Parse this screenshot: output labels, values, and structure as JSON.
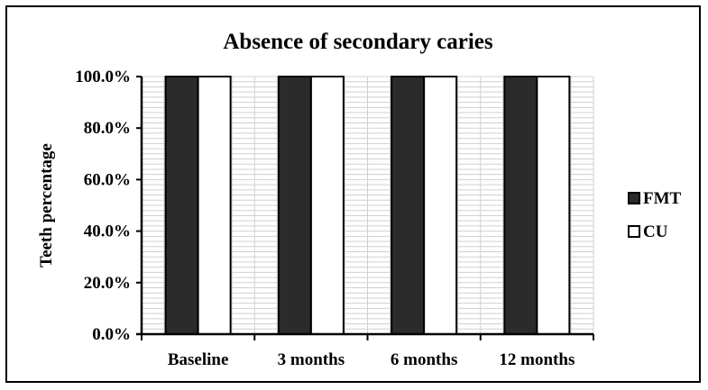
{
  "chart_data": {
    "type": "bar",
    "title": "Absence of secondary caries",
    "xlabel": "",
    "ylabel": "Teeth percentage",
    "categories": [
      "Baseline",
      "3 months",
      "6 months",
      "12 months"
    ],
    "series": [
      {
        "name": "FMT",
        "values": [
          100,
          100,
          100,
          100
        ],
        "color": "#2b2b2b"
      },
      {
        "name": "CU",
        "values": [
          100,
          100,
          100,
          100
        ],
        "color": "#ffffff"
      }
    ],
    "ylim": [
      0,
      100
    ],
    "yticks": [
      "0.0%",
      "20.0%",
      "40.0%",
      "60.0%",
      "80.0%",
      "100.0%"
    ],
    "grid": true,
    "legend": "right"
  }
}
